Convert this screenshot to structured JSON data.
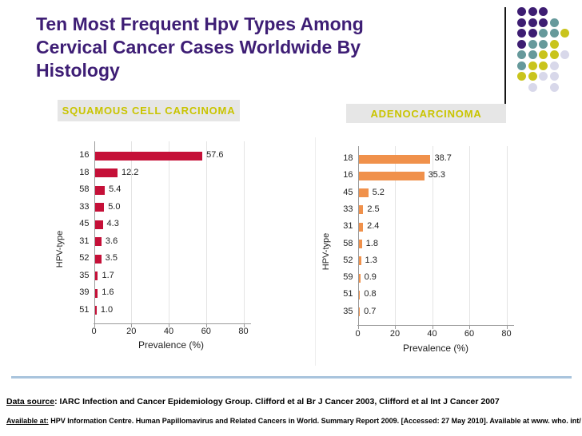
{
  "title": {
    "lines": [
      "Ten Most Frequent Hpv Types Among",
      "Cervical Cancer Cases Worldwide By",
      "Histology"
    ],
    "color": "#3e1e75"
  },
  "decor": {
    "dot_matrix": [
      "PPP..",
      "PPPT.",
      "PPTTY",
      "PTTY.",
      "TTYYL",
      "TYYL.",
      "YYLL.",
      ".L.L."
    ],
    "dot_colors": {
      "P": "#3d1d72",
      "T": "#66999b",
      "Y": "#c9c41c",
      "L": "#d8d8ea"
    },
    "divider_color": "#161616",
    "footer_rule_color": "#a9c4dd"
  },
  "chart_data": [
    {
      "type": "bar",
      "orientation": "horizontal",
      "title": "SQUAMOUS CELL CARCINOMA",
      "categories": [
        "16",
        "18",
        "58",
        "33",
        "45",
        "31",
        "52",
        "35",
        "39",
        "51"
      ],
      "values": [
        57.6,
        12.2,
        5.4,
        5.0,
        4.3,
        3.6,
        3.5,
        1.7,
        1.6,
        1.0
      ],
      "value_labels": [
        "57.6",
        "12.2",
        "5.4",
        "5.0",
        "4.3",
        "3.6",
        "3.5",
        "1.7",
        "1.6",
        "1.0"
      ],
      "xlabel": "Prevalence (%)",
      "ylabel": "HPV-type",
      "xlim": [
        0,
        88
      ],
      "xticks": [
        0,
        20,
        40,
        60,
        80
      ],
      "bar_color": "#c51038",
      "grid": true,
      "legend": "none"
    },
    {
      "type": "bar",
      "orientation": "horizontal",
      "title": "ADENOCARCINOMA",
      "categories": [
        "18",
        "16",
        "45",
        "33",
        "31",
        "58",
        "52",
        "59",
        "51",
        "35"
      ],
      "values": [
        38.7,
        35.3,
        5.2,
        2.5,
        2.4,
        1.8,
        1.3,
        0.9,
        0.8,
        0.7
      ],
      "value_labels": [
        "38.7",
        "35.3",
        "5.2",
        "2.5",
        "2.4",
        "1.8",
        "1.3",
        "0.9",
        "0.8",
        "0.7"
      ],
      "xlabel": "Prevalence (%)",
      "ylabel": "HPV-type",
      "xlim": [
        0,
        88
      ],
      "xticks": [
        0,
        20,
        40,
        60,
        80
      ],
      "bar_color": "#f0914b",
      "grid": true,
      "legend": "none"
    }
  ],
  "footer": {
    "citations": [
      {
        "prefix": "Data source",
        "text": ": IARC Infection and Cancer Epidemiology Group. Clifford et al Br J Cancer 2003, Clifford et al Int J Cancer 2007"
      },
      {
        "prefix": "Available at:",
        "text": " HPV Information Centre. Human Papillomavirus and Related Cancers in World. Summary Report 2009. [Accessed: 27 May 2010]. Available at www. who. int/ hpvcentre"
      }
    ]
  }
}
